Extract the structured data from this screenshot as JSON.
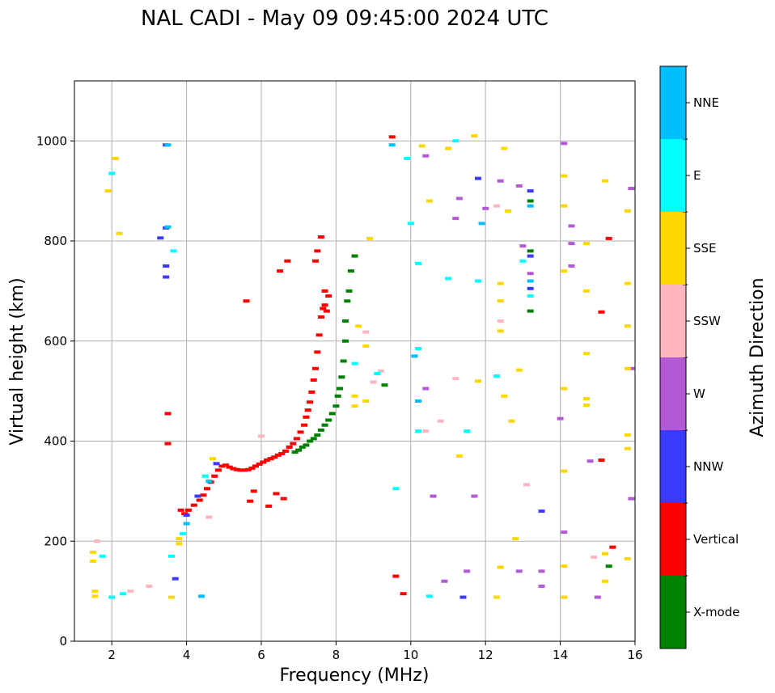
{
  "chart_data": {
    "type": "scatter",
    "title": "NAL CADI - May 09 09:45:00 2024 UTC",
    "xlabel": "Frequency (MHz)",
    "ylabel": "Virtual height (km)",
    "xlim": [
      1,
      16
    ],
    "ylim": [
      0,
      1120
    ],
    "xticks": [
      "2",
      "4",
      "6",
      "8",
      "10",
      "12",
      "14",
      "16"
    ],
    "yticks": [
      "0",
      "200",
      "400",
      "600",
      "800",
      "1000"
    ],
    "grid": true,
    "colorbar": {
      "label": "Azimuth Direction",
      "categories": [
        {
          "name": "X-mode",
          "color": "#008000"
        },
        {
          "name": "Vertical",
          "color": "#ff0000"
        },
        {
          "name": "NNW",
          "color": "#3a3aff"
        },
        {
          "name": "W",
          "color": "#b459d6"
        },
        {
          "name": "SSW",
          "color": "#ffb6c1"
        },
        {
          "name": "SSE",
          "color": "#ffd700"
        },
        {
          "name": "E",
          "color": "#00ffff"
        },
        {
          "name": "NNE",
          "color": "#00bfff"
        }
      ]
    },
    "series": [
      {
        "name": "Vertical",
        "points": [
          [
            3.85,
            262
          ],
          [
            3.95,
            255
          ],
          [
            4.05,
            262
          ],
          [
            4.2,
            272
          ],
          [
            4.35,
            282
          ],
          [
            4.45,
            292
          ],
          [
            4.55,
            305
          ],
          [
            4.65,
            318
          ],
          [
            4.75,
            330
          ],
          [
            4.85,
            342
          ],
          [
            4.95,
            350
          ],
          [
            5.05,
            352
          ],
          [
            5.15,
            348
          ],
          [
            5.25,
            345
          ],
          [
            5.35,
            343
          ],
          [
            5.45,
            342
          ],
          [
            5.55,
            342
          ],
          [
            5.65,
            343
          ],
          [
            5.75,
            346
          ],
          [
            5.85,
            350
          ],
          [
            5.95,
            354
          ],
          [
            6.05,
            358
          ],
          [
            6.15,
            362
          ],
          [
            6.25,
            365
          ],
          [
            6.35,
            368
          ],
          [
            6.45,
            372
          ],
          [
            6.55,
            375
          ],
          [
            6.65,
            380
          ],
          [
            6.75,
            388
          ],
          [
            6.85,
            395
          ],
          [
            6.95,
            405
          ],
          [
            7.05,
            418
          ],
          [
            7.15,
            432
          ],
          [
            7.2,
            448
          ],
          [
            7.25,
            462
          ],
          [
            7.3,
            478
          ],
          [
            7.35,
            498
          ],
          [
            7.4,
            522
          ],
          [
            7.45,
            545
          ],
          [
            7.5,
            578
          ],
          [
            7.55,
            612
          ],
          [
            7.6,
            648
          ],
          [
            7.65,
            665
          ],
          [
            7.7,
            672
          ],
          [
            7.75,
            660
          ],
          [
            7.45,
            760
          ],
          [
            7.5,
            780
          ],
          [
            7.6,
            808
          ],
          [
            7.7,
            700
          ],
          [
            7.8,
            690
          ],
          [
            6.4,
            295
          ],
          [
            6.6,
            285
          ],
          [
            6.2,
            270
          ],
          [
            5.8,
            300
          ],
          [
            5.7,
            280
          ],
          [
            5.6,
            680
          ],
          [
            6.5,
            740
          ],
          [
            6.7,
            760
          ],
          [
            3.5,
            455
          ],
          [
            3.5,
            395
          ],
          [
            9.5,
            1008
          ],
          [
            9.6,
            130
          ],
          [
            9.8,
            95
          ],
          [
            15.3,
            805
          ],
          [
            15.1,
            658
          ],
          [
            15.1,
            362
          ],
          [
            15.4,
            188
          ]
        ]
      },
      {
        "name": "X-mode",
        "points": [
          [
            6.9,
            378
          ],
          [
            7.0,
            382
          ],
          [
            7.1,
            388
          ],
          [
            7.2,
            392
          ],
          [
            7.3,
            400
          ],
          [
            7.4,
            405
          ],
          [
            7.5,
            412
          ],
          [
            7.6,
            422
          ],
          [
            7.7,
            432
          ],
          [
            7.8,
            442
          ],
          [
            7.9,
            455
          ],
          [
            8.0,
            470
          ],
          [
            8.05,
            490
          ],
          [
            8.1,
            505
          ],
          [
            8.15,
            528
          ],
          [
            8.2,
            560
          ],
          [
            8.25,
            600
          ],
          [
            8.25,
            640
          ],
          [
            8.3,
            680
          ],
          [
            8.35,
            700
          ],
          [
            8.4,
            740
          ],
          [
            8.5,
            770
          ],
          [
            9.3,
            512
          ],
          [
            13.2,
            880
          ],
          [
            13.2,
            780
          ],
          [
            13.2,
            660
          ],
          [
            15.3,
            150
          ]
        ]
      },
      {
        "name": "NNW",
        "points": [
          [
            3.45,
            992
          ],
          [
            3.45,
            826
          ],
          [
            3.45,
            750
          ],
          [
            3.45,
            728
          ],
          [
            3.7,
            125
          ],
          [
            4.0,
            252
          ],
          [
            4.3,
            290
          ],
          [
            4.8,
            355
          ],
          [
            11.8,
            925
          ],
          [
            13.2,
            900
          ],
          [
            13.2,
            770
          ],
          [
            13.2,
            705
          ],
          [
            13.5,
            260
          ],
          [
            11.4,
            88
          ],
          [
            3.3,
            806
          ]
        ]
      },
      {
        "name": "W",
        "points": [
          [
            13.0,
            790
          ],
          [
            13.2,
            735
          ],
          [
            12.4,
            920
          ],
          [
            12.9,
            910
          ],
          [
            11.3,
            885
          ],
          [
            11.2,
            845
          ],
          [
            10.4,
            970
          ],
          [
            12.0,
            865
          ],
          [
            14.1,
            995
          ],
          [
            14.3,
            830
          ],
          [
            14.3,
            795
          ],
          [
            14.3,
            750
          ],
          [
            14.0,
            445
          ],
          [
            14.1,
            218
          ],
          [
            13.5,
            140
          ],
          [
            13.5,
            110
          ],
          [
            14.8,
            360
          ],
          [
            15.9,
            905
          ],
          [
            15.9,
            545
          ],
          [
            15.9,
            285
          ],
          [
            15.0,
            88
          ],
          [
            10.4,
            505
          ],
          [
            10.6,
            290
          ],
          [
            10.9,
            120
          ],
          [
            11.5,
            140
          ],
          [
            11.7,
            290
          ],
          [
            12.9,
            140
          ]
        ]
      },
      {
        "name": "SSW",
        "points": [
          [
            2.5,
            100
          ],
          [
            3.0,
            110
          ],
          [
            4.6,
            248
          ],
          [
            6.0,
            410
          ],
          [
            8.8,
            618
          ],
          [
            9.2,
            540
          ],
          [
            9.0,
            518
          ],
          [
            12.3,
            870
          ],
          [
            12.4,
            640
          ],
          [
            11.2,
            525
          ],
          [
            13.1,
            313
          ],
          [
            10.8,
            440
          ],
          [
            10.4,
            420
          ],
          [
            14.9,
            168
          ],
          [
            1.6,
            200
          ]
        ]
      },
      {
        "name": "SSE",
        "points": [
          [
            1.5,
            178
          ],
          [
            1.5,
            160
          ],
          [
            1.55,
            100
          ],
          [
            1.55,
            90
          ],
          [
            1.9,
            900
          ],
          [
            2.1,
            965
          ],
          [
            2.2,
            815
          ],
          [
            3.6,
            88
          ],
          [
            3.8,
            195
          ],
          [
            3.8,
            205
          ],
          [
            4.7,
            365
          ],
          [
            8.6,
            630
          ],
          [
            8.8,
            590
          ],
          [
            8.5,
            470
          ],
          [
            8.5,
            490
          ],
          [
            8.8,
            480
          ],
          [
            8.9,
            805
          ],
          [
            10.3,
            990
          ],
          [
            10.5,
            880
          ],
          [
            11.0,
            985
          ],
          [
            11.7,
            1010
          ],
          [
            12.5,
            985
          ],
          [
            12.6,
            860
          ],
          [
            12.4,
            715
          ],
          [
            12.4,
            680
          ],
          [
            12.4,
            620
          ],
          [
            12.5,
            490
          ],
          [
            12.7,
            440
          ],
          [
            12.8,
            205
          ],
          [
            12.4,
            148
          ],
          [
            12.3,
            88
          ],
          [
            14.1,
            930
          ],
          [
            14.1,
            870
          ],
          [
            14.1,
            740
          ],
          [
            14.1,
            505
          ],
          [
            14.1,
            340
          ],
          [
            14.1,
            150
          ],
          [
            14.1,
            88
          ],
          [
            14.7,
            795
          ],
          [
            14.7,
            700
          ],
          [
            14.7,
            575
          ],
          [
            14.7,
            485
          ],
          [
            14.7,
            472
          ],
          [
            15.2,
            920
          ],
          [
            15.2,
            175
          ],
          [
            15.2,
            120
          ],
          [
            15.8,
            860
          ],
          [
            15.8,
            715
          ],
          [
            15.8,
            630
          ],
          [
            15.8,
            545
          ],
          [
            15.8,
            412
          ],
          [
            15.8,
            385
          ],
          [
            15.8,
            165
          ],
          [
            11.3,
            370
          ],
          [
            11.8,
            520
          ],
          [
            12.9,
            542
          ]
        ]
      },
      {
        "name": "E",
        "points": [
          [
            1.75,
            170
          ],
          [
            2.0,
            935
          ],
          [
            2.0,
            88
          ],
          [
            2.3,
            95
          ],
          [
            3.65,
            780
          ],
          [
            3.6,
            170
          ],
          [
            3.9,
            215
          ],
          [
            4.5,
            330
          ],
          [
            9.9,
            965
          ],
          [
            10.2,
            755
          ],
          [
            10.2,
            585
          ],
          [
            10.2,
            420
          ],
          [
            9.6,
            305
          ],
          [
            10.5,
            90
          ],
          [
            11.0,
            725
          ],
          [
            11.5,
            420
          ],
          [
            11.8,
            720
          ],
          [
            12.3,
            530
          ],
          [
            13.0,
            760
          ],
          [
            13.2,
            690
          ],
          [
            9.1,
            535
          ],
          [
            8.5,
            555
          ],
          [
            10.0,
            835
          ],
          [
            11.2,
            1000
          ]
        ]
      },
      {
        "name": "NNE",
        "points": [
          [
            3.5,
            992
          ],
          [
            3.5,
            828
          ],
          [
            4.4,
            90
          ],
          [
            4.0,
            235
          ],
          [
            4.6,
            320
          ],
          [
            9.5,
            992
          ],
          [
            10.2,
            480
          ],
          [
            10.1,
            570
          ],
          [
            13.2,
            720
          ],
          [
            13.2,
            870
          ],
          [
            11.9,
            835
          ]
        ]
      }
    ]
  }
}
